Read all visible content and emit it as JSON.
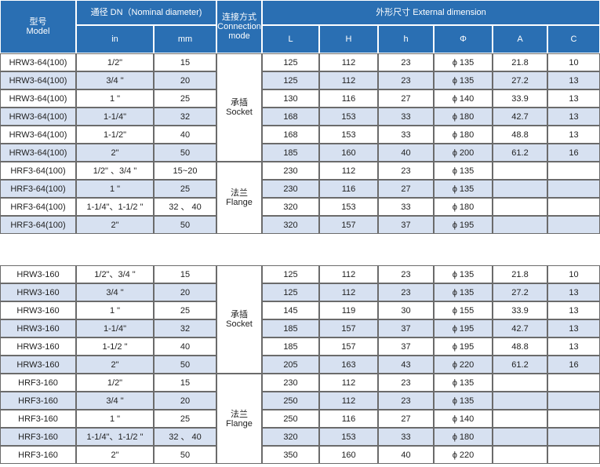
{
  "header": {
    "model": [
      "型号",
      "Model"
    ],
    "dn": "通径 DN（Nominal diameter)",
    "in": "in",
    "mm": "mm",
    "connection": [
      "连接方式",
      "Connection",
      "mode"
    ],
    "external": "外形尺寸  External dimension",
    "dims": [
      "L",
      "H",
      "h",
      "Φ",
      "A",
      "C"
    ]
  },
  "tables": [
    {
      "groups": [
        {
          "connection": [
            "承插",
            "Socket"
          ],
          "rows": [
            [
              "HRW3-64(100)",
              "1/2\"",
              15,
              125,
              112,
              23,
              "ϕ 135",
              21.8,
              10
            ],
            [
              "HRW3-64(100)",
              "3/4 \"",
              20,
              125,
              112,
              23,
              "ϕ 135",
              27.2,
              13
            ],
            [
              "HRW3-64(100)",
              "1 \"",
              25,
              130,
              116,
              27,
              "ϕ 140",
              33.9,
              13
            ],
            [
              "HRW3-64(100)",
              "1-1/4\"",
              32,
              168,
              153,
              33,
              "ϕ 180",
              42.7,
              13
            ],
            [
              "HRW3-64(100)",
              "1-1/2\"",
              40,
              168,
              153,
              33,
              "ϕ 180",
              48.8,
              13
            ],
            [
              "HRW3-64(100)",
              "2\"",
              50,
              185,
              160,
              40,
              "ϕ 200",
              61.2,
              16
            ]
          ]
        },
        {
          "connection": [
            "法兰",
            "Flange"
          ],
          "rows": [
            [
              "HRF3-64(100)",
              "1/2\" 、3/4 \"",
              "15~20",
              230,
              112,
              23,
              "ϕ 135",
              null,
              null
            ],
            [
              "HRF3-64(100)",
              "1 \"",
              25,
              230,
              116,
              27,
              "ϕ 135",
              null,
              null
            ],
            [
              "HRF3-64(100)",
              "1-1/4\"、1-1/2 \"",
              "32 、 40",
              320,
              153,
              33,
              "ϕ 180",
              null,
              null
            ],
            [
              "HRF3-64(100)",
              "2\"",
              50,
              320,
              157,
              37,
              "ϕ 195",
              null,
              null
            ]
          ]
        }
      ]
    },
    {
      "groups": [
        {
          "connection": [
            "承插",
            "Socket"
          ],
          "rows": [
            [
              "HRW3-160",
              "1/2\"、3/4 \"",
              15,
              125,
              112,
              23,
              "ϕ 135",
              21.8,
              10
            ],
            [
              "HRW3-160",
              "3/4 \"",
              20,
              125,
              112,
              23,
              "ϕ 135",
              27.2,
              13
            ],
            [
              "HRW3-160",
              "1 \"",
              25,
              145,
              119,
              30,
              "ϕ 155",
              33.9,
              13
            ],
            [
              "HRW3-160",
              "1-1/4\"",
              32,
              185,
              157,
              37,
              "ϕ 195",
              42.7,
              13
            ],
            [
              "HRW3-160",
              "1-1/2 \"",
              40,
              185,
              157,
              37,
              "ϕ 195",
              48.8,
              13
            ],
            [
              "HRW3-160",
              "2\"",
              50,
              205,
              163,
              43,
              "ϕ 220",
              61.2,
              16
            ]
          ]
        },
        {
          "connection": [
            "法兰",
            "Flange"
          ],
          "rows": [
            [
              "HRF3-160",
              "1/2\"",
              15,
              230,
              112,
              23,
              "ϕ 135",
              null,
              null
            ],
            [
              "HRF3-160",
              "3/4 \"",
              20,
              250,
              112,
              23,
              "ϕ 135",
              null,
              null
            ],
            [
              "HRF3-160",
              "1 \"",
              25,
              250,
              116,
              27,
              "ϕ 140",
              null,
              null
            ],
            [
              "HRF3-160",
              "1-1/4\"、1-1/2 \"",
              "32 、 40",
              320,
              153,
              33,
              "ϕ 180",
              null,
              null
            ],
            [
              "HRF3-160",
              "2\"",
              50,
              350,
              160,
              40,
              "ϕ 220",
              null,
              null
            ]
          ]
        }
      ]
    }
  ]
}
